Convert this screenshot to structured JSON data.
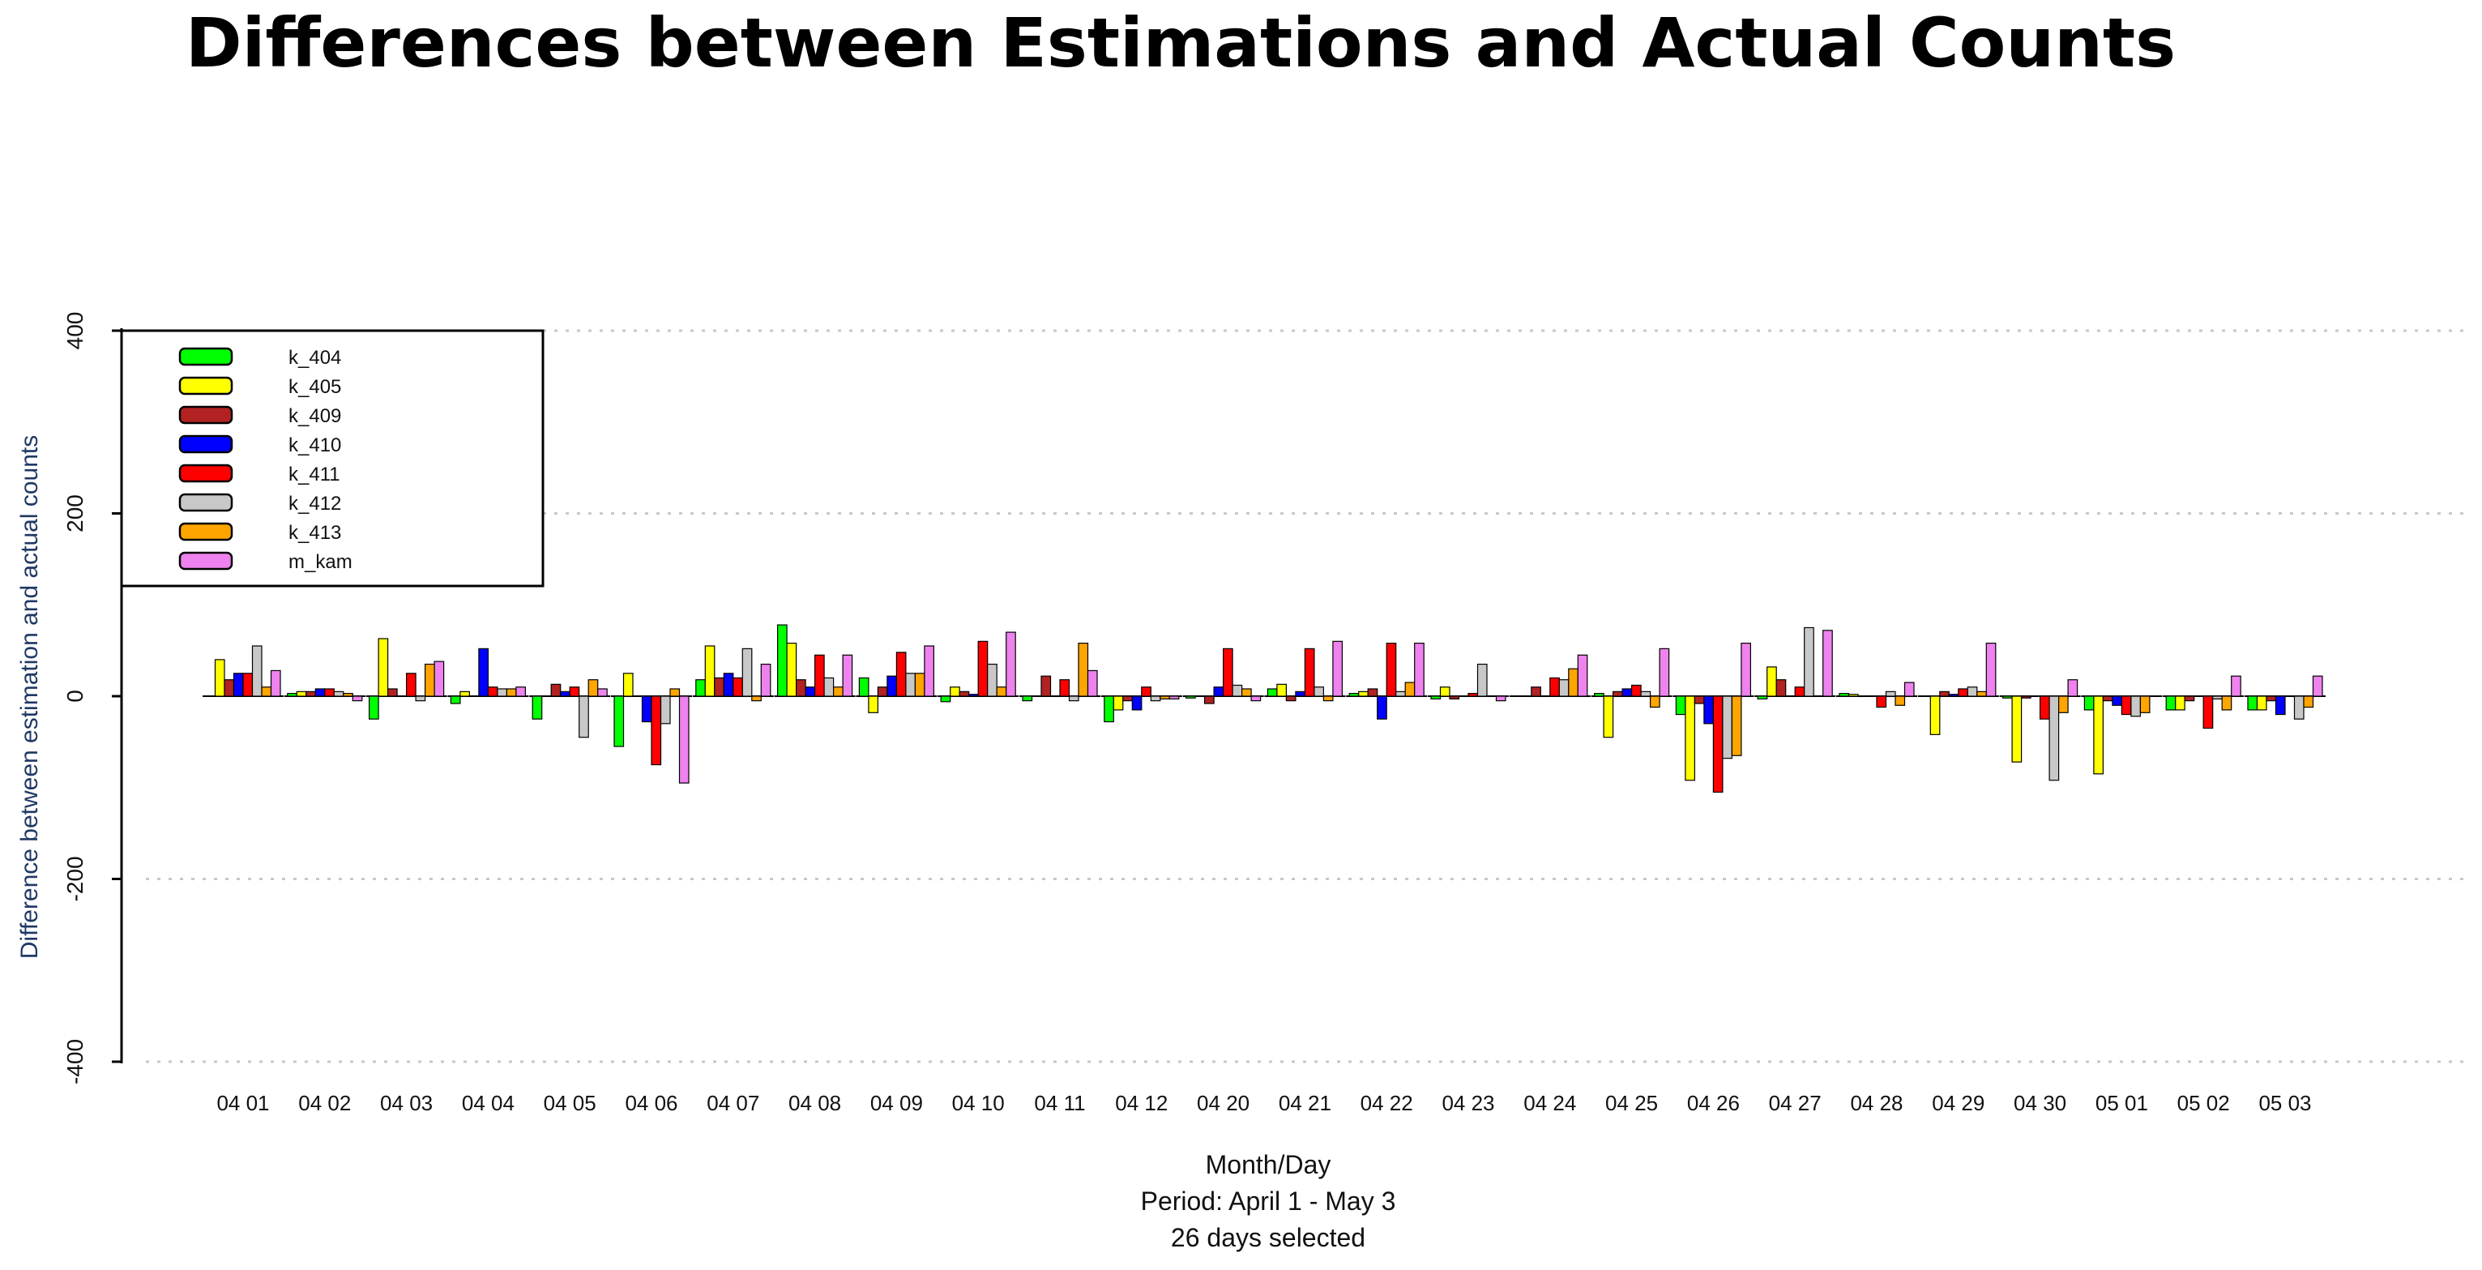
{
  "chart_data": {
    "type": "bar",
    "title": "Differences between Estimations and Actual Counts",
    "ylabel": "Difference between estimation and actual counts",
    "xlabel_lines": [
      "Month/Day",
      "Period: April 1 - May 3",
      "26 days selected"
    ],
    "ylim": [
      -400,
      400
    ],
    "yticks": [
      -400,
      -200,
      0,
      200,
      400
    ],
    "ytick_labels": [
      "-400",
      "-200",
      "0",
      "200",
      "400"
    ],
    "grid": true,
    "legend_position": "top-left",
    "categories": [
      "04 01",
      "04 02",
      "04 03",
      "04 04",
      "04 05",
      "04 06",
      "04 07",
      "04 08",
      "04 09",
      "04 10",
      "04 11",
      "04 12",
      "04 20",
      "04 21",
      "04 22",
      "04 23",
      "04 24",
      "04 25",
      "04 26",
      "04 27",
      "04 28",
      "04 29",
      "04 30",
      "05 01",
      "05 02",
      "05 03"
    ],
    "series": [
      {
        "name": "k_404",
        "color": "#00ff00",
        "values": [
          0,
          3,
          -25,
          -8,
          -25,
          -55,
          18,
          78,
          20,
          -6,
          -5,
          -28,
          -2,
          8,
          3,
          -3,
          0,
          3,
          -20,
          -3,
          3,
          0,
          -2,
          -15,
          -15,
          -15
        ]
      },
      {
        "name": "k_405",
        "color": "#ffff00",
        "values": [
          40,
          5,
          63,
          5,
          0,
          25,
          55,
          58,
          -18,
          10,
          0,
          -15,
          0,
          13,
          5,
          10,
          0,
          -45,
          -92,
          32,
          2,
          -42,
          -72,
          -85,
          -15,
          -15
        ]
      },
      {
        "name": "k_409",
        "color": "#b22222",
        "values": [
          18,
          5,
          8,
          0,
          13,
          0,
          20,
          18,
          10,
          5,
          22,
          -5,
          -8,
          -5,
          8,
          -3,
          10,
          5,
          -8,
          18,
          0,
          5,
          -2,
          -5,
          -5,
          -5
        ]
      },
      {
        "name": "k_410",
        "color": "#0000ff",
        "values": [
          25,
          8,
          0,
          52,
          5,
          -28,
          25,
          10,
          22,
          2,
          0,
          -15,
          10,
          5,
          -25,
          0,
          0,
          8,
          -30,
          0,
          0,
          2,
          0,
          -10,
          0,
          -20
        ]
      },
      {
        "name": "k_411",
        "color": "#ff0000",
        "values": [
          25,
          8,
          25,
          10,
          10,
          -75,
          20,
          45,
          48,
          60,
          18,
          10,
          52,
          52,
          58,
          3,
          20,
          12,
          -105,
          10,
          -12,
          8,
          -25,
          -20,
          -35,
          0
        ]
      },
      {
        "name": "k_412",
        "color": "#c8c8c8",
        "values": [
          55,
          5,
          -5,
          8,
          -45,
          -30,
          52,
          20,
          25,
          35,
          -5,
          -5,
          12,
          10,
          5,
          35,
          18,
          5,
          -68,
          75,
          5,
          10,
          -92,
          -22,
          -3,
          -25
        ]
      },
      {
        "name": "k_413",
        "color": "#ffa500",
        "values": [
          10,
          3,
          35,
          8,
          18,
          8,
          -5,
          10,
          25,
          10,
          58,
          -3,
          8,
          -5,
          15,
          0,
          30,
          -12,
          -65,
          0,
          -10,
          5,
          -18,
          -18,
          -15,
          -12
        ]
      },
      {
        "name": "m_kam",
        "color": "#ee82ee",
        "values": [
          28,
          -5,
          38,
          10,
          8,
          -95,
          35,
          45,
          55,
          70,
          28,
          -3,
          -5,
          60,
          58,
          -5,
          45,
          52,
          58,
          72,
          15,
          58,
          18,
          0,
          22,
          22
        ]
      }
    ]
  }
}
